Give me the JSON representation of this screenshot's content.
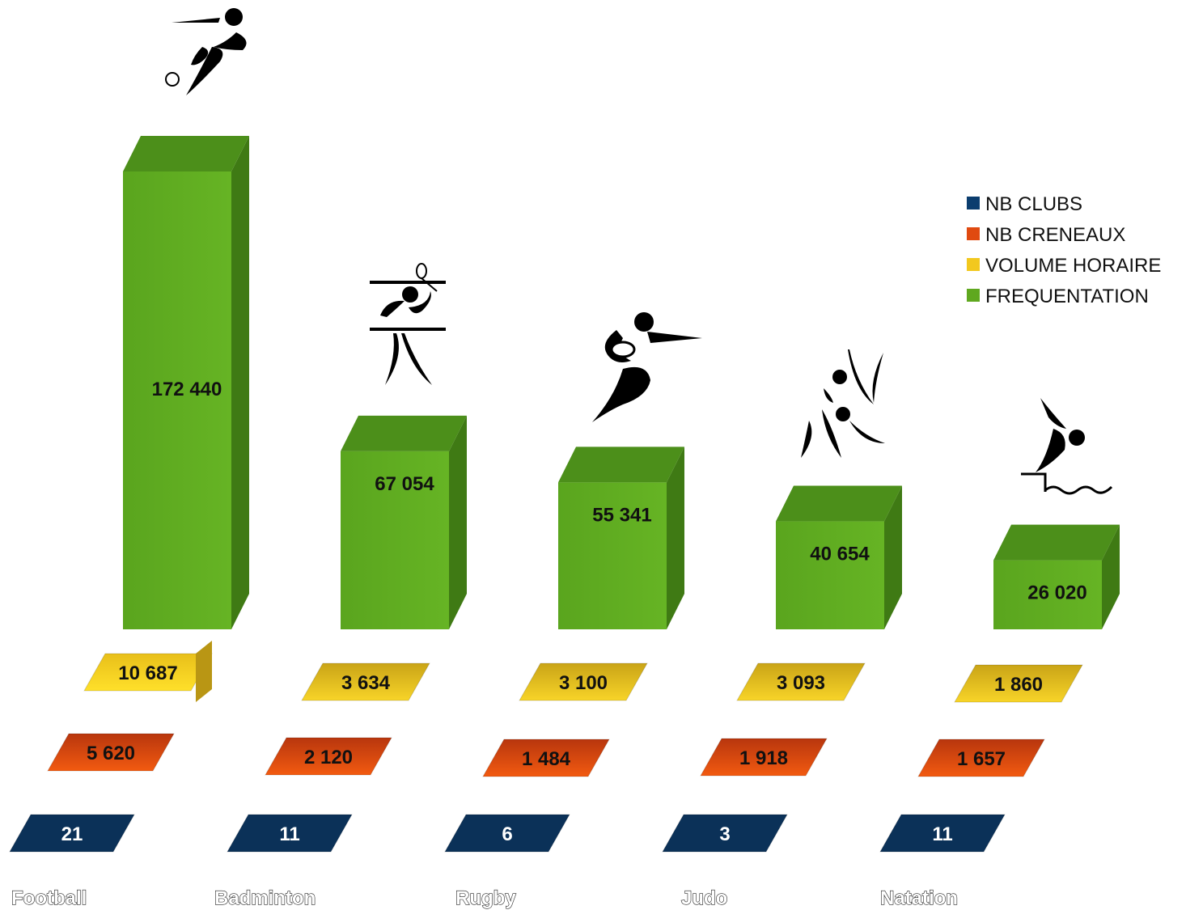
{
  "chart_data": {
    "type": "bar",
    "title": "",
    "categories": [
      "Football",
      "Badminton",
      "Rugby",
      "Judo",
      "Natation"
    ],
    "series": [
      {
        "name": "NB CLUBS",
        "color": "#0b3d6e",
        "values": [
          21,
          11,
          6,
          3,
          11
        ]
      },
      {
        "name": "NB CRENEAUX",
        "color": "#e04a10",
        "values": [
          5620,
          2120,
          1484,
          1918,
          1657
        ]
      },
      {
        "name": "VOLUME HORAIRE",
        "color": "#f2c81e",
        "values": [
          10687,
          3634,
          3100,
          3093,
          1860
        ]
      },
      {
        "name": "FREQUENTATION",
        "color": "#5fa81f",
        "values": [
          172440,
          67054,
          55341,
          40654,
          26020
        ]
      }
    ],
    "value_labels": {
      "NB CLUBS": [
        "21",
        "11",
        "6",
        "3",
        "11"
      ],
      "NB CRENEAUX": [
        "5 620",
        "2 120",
        "1 484",
        "1 918",
        "1 657"
      ],
      "VOLUME HORAIRE": [
        "10 687",
        "3 634",
        "3 100",
        "3 093",
        "1 860"
      ],
      "FREQUENTATION": [
        "172 440",
        "67 054",
        "55 341",
        "40 654",
        "26 020"
      ]
    },
    "legend_position": "top-right",
    "grid": false,
    "icons": [
      "football-icon",
      "badminton-icon",
      "rugby-icon",
      "judo-icon",
      "swimming-icon"
    ]
  }
}
